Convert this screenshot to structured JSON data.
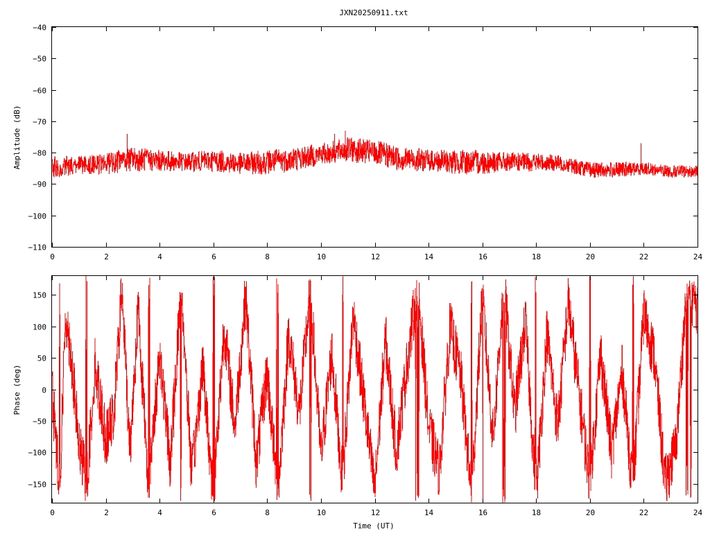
{
  "title": "JXN20250911.txt",
  "colors": {
    "trace": "#ff0000",
    "axis": "#000000",
    "background": "#ffffff"
  },
  "chart_data": [
    {
      "type": "line",
      "panel": "amplitude",
      "title": "JXN20250911.txt",
      "xlabel": "",
      "ylabel": "Amplitude (dB)",
      "xlim": [
        0,
        24
      ],
      "ylim": [
        -110,
        -40
      ],
      "xticks": [
        0,
        2,
        4,
        6,
        8,
        10,
        12,
        14,
        16,
        18,
        20,
        22,
        24
      ],
      "yticks": [
        -110,
        -100,
        -90,
        -80,
        -70,
        -60,
        -50,
        -40
      ],
      "xtick_labels": [
        "0",
        "2",
        "4",
        "6",
        "8",
        "10",
        "12",
        "14",
        "16",
        "18",
        "20",
        "22",
        "24"
      ],
      "ytick_labels": [
        "−110",
        "−100",
        "−90",
        "−80",
        "−70",
        "−60",
        "−50",
        "−40"
      ],
      "grid": false,
      "series": [
        {
          "color": "#ff0000",
          "envelope": {
            "x": [
              0,
              1,
              2,
              3,
              4,
              5,
              6,
              7,
              8,
              9,
              10,
              11,
              12,
              13,
              14,
              15,
              16,
              17,
              18,
              19,
              20,
              21,
              22,
              23,
              24
            ],
            "upper": [
              -81,
              -81,
              -80,
              -78,
              -79,
              -80,
              -79,
              -80,
              -79,
              -78,
              -77,
              -75,
              -76,
              -78,
              -79,
              -79,
              -79,
              -80,
              -80,
              -81,
              -83,
              -83,
              -83,
              -84,
              -84
            ],
            "lower": [
              -88,
              -87,
              -87,
              -86,
              -86,
              -86,
              -86,
              -87,
              -87,
              -86,
              -84,
              -83,
              -84,
              -86,
              -86,
              -87,
              -87,
              -86,
              -86,
              -86,
              -88,
              -88,
              -87,
              -88,
              -88
            ]
          },
          "spikes": [
            {
              "x": 2.8,
              "y": -74
            },
            {
              "x": 10.5,
              "y": -74
            },
            {
              "x": 10.9,
              "y": -73
            },
            {
              "x": 21.9,
              "y": -77
            }
          ]
        }
      ]
    },
    {
      "type": "line",
      "panel": "phase",
      "xlabel": "Time (UT)",
      "ylabel": "Phase (deg)",
      "xlim": [
        0,
        24
      ],
      "ylim": [
        -180,
        180
      ],
      "xticks": [
        0,
        2,
        4,
        6,
        8,
        10,
        12,
        14,
        16,
        18,
        20,
        22,
        24
      ],
      "yticks": [
        -150,
        -100,
        -50,
        0,
        50,
        100,
        150
      ],
      "xtick_labels": [
        "0",
        "2",
        "4",
        "6",
        "8",
        "10",
        "12",
        "14",
        "16",
        "18",
        "20",
        "22",
        "24"
      ],
      "ytick_labels": [
        "−150",
        "−100",
        "−50",
        "0",
        "50",
        "100",
        "150"
      ],
      "grid": false,
      "series": [
        {
          "color": "#ff0000",
          "wrapped_phase": true,
          "anchors": {
            "x": [
              0,
              0.3,
              0.5,
              0.7,
              1.0,
              1.3,
              1.6,
              2.0,
              2.3,
              2.6,
              2.9,
              3.2,
              3.6,
              4.0,
              4.4,
              4.8,
              5.2,
              5.6,
              6.0,
              6.4,
              6.8,
              7.2,
              7.6,
              8.0,
              8.4,
              8.8,
              9.2,
              9.6,
              10.0,
              10.4,
              10.8,
              11.2,
              11.6,
              12.0,
              12.4,
              12.8,
              13.2,
              13.6,
              14.0,
              14.4,
              14.8,
              15.2,
              15.6,
              16.0,
              16.4,
              16.8,
              17.2,
              17.6,
              18.0,
              18.4,
              18.8,
              19.2,
              19.6,
              20.0,
              20.4,
              20.8,
              21.2,
              21.6,
              22.0,
              22.4,
              22.8,
              23.2,
              23.6,
              24.0
            ],
            "y": [
              0,
              -160,
              120,
              60,
              -90,
              -150,
              40,
              -80,
              -40,
              160,
              -100,
              130,
              -160,
              60,
              -120,
              170,
              -140,
              40,
              -170,
              100,
              -60,
              150,
              -120,
              30,
              -170,
              90,
              -40,
              160,
              -110,
              60,
              -150,
              120,
              -20,
              -160,
              80,
              -100,
              40,
              170,
              -60,
              -130,
              100,
              20,
              -170,
              150,
              -80,
              170,
              -40,
              110,
              -170,
              90,
              -60,
              140,
              -10,
              -150,
              60,
              -100,
              30,
              -160,
              120,
              50,
              -150,
              -90,
              160,
              130
            ]
          }
        }
      ]
    }
  ]
}
